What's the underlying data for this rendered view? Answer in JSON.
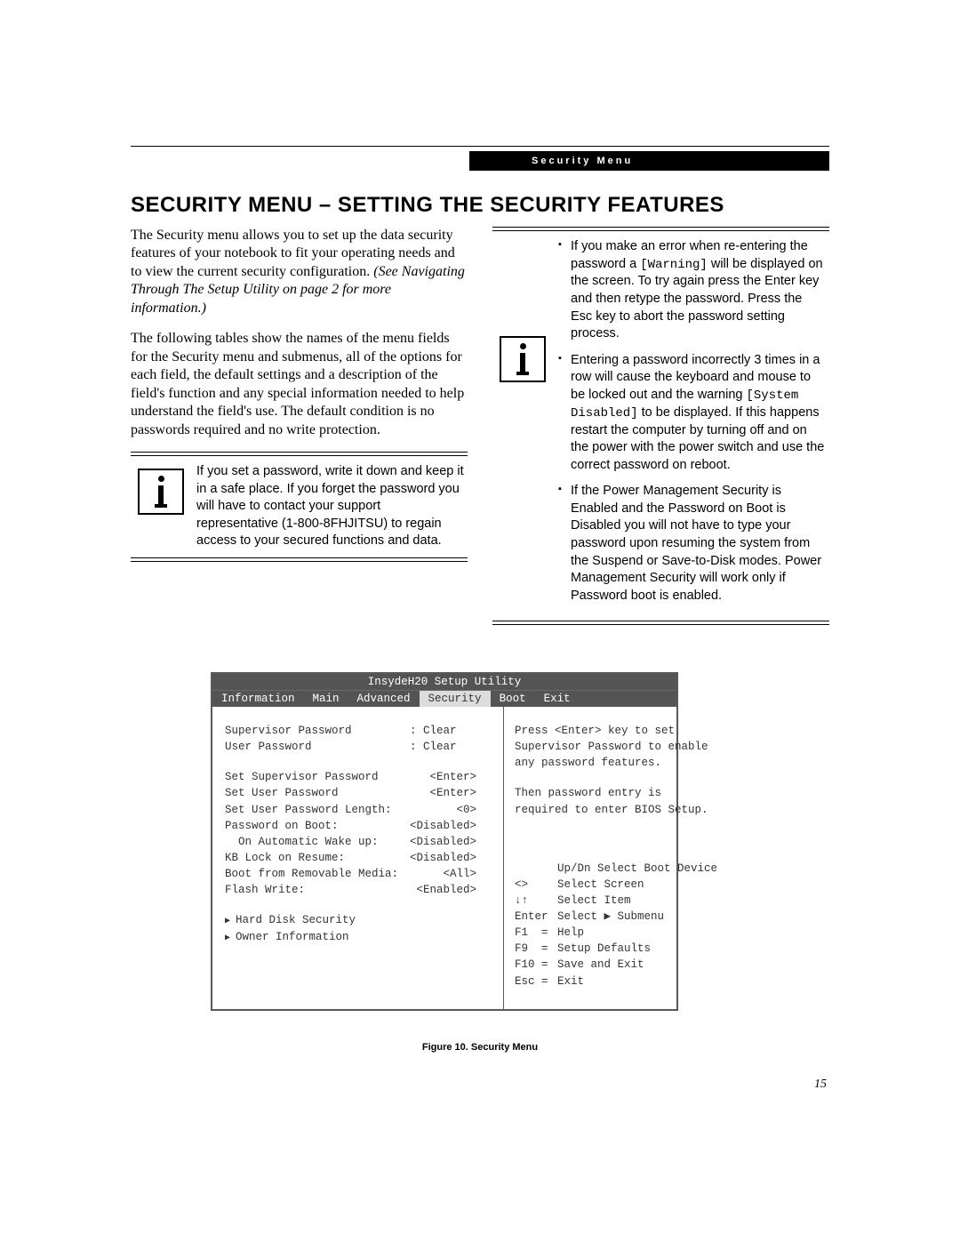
{
  "header": {
    "label": "Security Menu"
  },
  "heading": "SECURITY MENU – SETTING THE SECURITY FEATURES",
  "intro": {
    "p1a": "The Security menu allows you to set up the data security features of your notebook to fit your operating needs and to view the current security configuration. ",
    "p1b": "(See Navigating Through The Setup Utility on page 2 for more information.)",
    "p2": "The following tables show the names of the menu fields for the Security menu and submenus, all of the options for each field, the default settings and a description of the field's function and any special information needed to help understand the field's use. The default condition is no passwords required and no write protection."
  },
  "noteLeft": "If you set a password, write it down and keep it in a safe place. If you forget the password you will have to contact your support representative (1-800-8FHJITSU) to regain access to your secured functions and data.",
  "noteRight": {
    "b1a": "If you make an error when re-entering the password a ",
    "b1code": "[Warning]",
    "b1b": " will be displayed on the screen. To try again press the Enter key and then retype the password. Press the Esc key to abort the password setting process.",
    "b2a": "Entering a password incorrectly 3 times in a row will cause the keyboard and mouse to be locked out and the warning ",
    "b2code": "[System Disabled]",
    "b2b": " to be displayed. If this happens restart the computer by turning off and on the power with the power switch and use the correct password on reboot.",
    "b3": "If the Power Management Security is Enabled and the Password on Boot is Disabled you will not have to type your password upon resuming the system from the Suspend or Save-to-Disk modes. Power Management Security will work only if Password boot is enabled."
  },
  "bios": {
    "title": "InsydeH20 Setup Utility",
    "tabs": [
      "Information",
      "Main",
      "Advanced",
      "Security",
      "Boot",
      "Exit"
    ],
    "activeTab": "Security",
    "rows": [
      {
        "label": "Supervisor Password",
        "value": ": Clear",
        "align": "left"
      },
      {
        "label": "User Password",
        "value": ": Clear",
        "align": "left"
      }
    ],
    "rows2": [
      {
        "label": "Set Supervisor Password",
        "value": "<Enter>",
        "align": "right"
      },
      {
        "label": "Set User Password",
        "value": "<Enter>",
        "align": "right"
      },
      {
        "label": "Set User Password Length:",
        "value": "<0>",
        "align": "right"
      },
      {
        "label": "Password on Boot:",
        "value": "<Disabled>",
        "align": "right"
      },
      {
        "label": "  On Automatic Wake up:",
        "value": "<Disabled>",
        "align": "right"
      },
      {
        "label": "KB Lock on Resume:",
        "value": "<Disabled>",
        "align": "right"
      },
      {
        "label": "Boot from Removable Media:",
        "value": "<All>",
        "align": "right"
      },
      {
        "label": "Flash Write:",
        "value": "<Enabled>",
        "align": "right"
      }
    ],
    "submenus": [
      "Hard Disk Security",
      "Owner Information"
    ],
    "helpTop": "Press <Enter> key to set Supervisor Password to enable any password features.",
    "helpMid": "Then password entry is required to enter BIOS Setup.",
    "helpKeys": [
      {
        "k": "",
        "v": "Up/Dn Select Boot Device"
      },
      {
        "k": "<>",
        "v": "Select Screen"
      },
      {
        "k": "↓↑",
        "v": "Select Item"
      },
      {
        "k": "Enter",
        "v": "Select ▶ Submenu"
      },
      {
        "k": "F1  =",
        "v": "Help"
      },
      {
        "k": "F9  =",
        "v": "Setup Defaults"
      },
      {
        "k": "F10 =",
        "v": "Save and Exit"
      },
      {
        "k": "Esc =",
        "v": "Exit"
      }
    ]
  },
  "figureCaption": "Figure 10.  Security Menu",
  "pageNumber": "15",
  "colors": {
    "headerBg": "#000000",
    "headerFg": "#ffffff",
    "biosFrame": "#595959",
    "biosTabBg": "#545454",
    "biosActiveTabBg": "#dcdcdc",
    "text": "#000000"
  }
}
